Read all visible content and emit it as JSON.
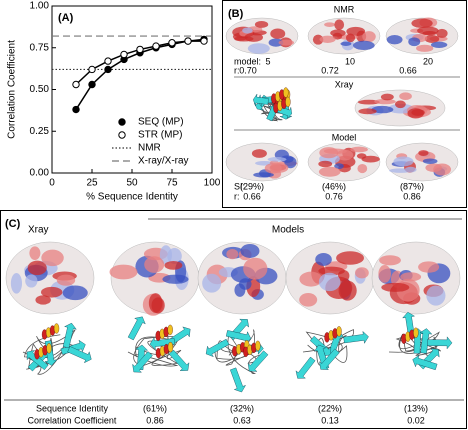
{
  "chart_data": {
    "type": "line",
    "panel_label": "(A)",
    "xlabel": "% Sequence Identity",
    "ylabel": "Correlation Coefficient",
    "x": [
      15,
      25,
      35,
      45,
      55,
      65,
      75,
      85,
      95
    ],
    "series": [
      {
        "name": "SEQ (MP)",
        "color": "#000000",
        "marker": "filled",
        "values": [
          0.38,
          0.53,
          0.62,
          0.68,
          0.72,
          0.75,
          0.77,
          0.79,
          0.8
        ]
      },
      {
        "name": "STR (MP)",
        "color": "#000000",
        "marker": "open",
        "values": [
          0.53,
          0.62,
          0.67,
          0.71,
          0.74,
          0.76,
          0.78,
          0.79,
          0.79
        ]
      }
    ],
    "reference_lines": [
      {
        "name": "NMR",
        "value": 0.62,
        "style": "dotted",
        "color": "#333333"
      },
      {
        "name": "X-ray/X-ray",
        "value": 0.82,
        "style": "dashed",
        "color": "#777777"
      }
    ],
    "xlim": [
      0,
      100
    ],
    "xticks": [
      0,
      25,
      50,
      75,
      100
    ],
    "ylim": [
      0,
      1
    ],
    "yticks": [
      {
        "value": 0,
        "label": "0.00"
      },
      {
        "value": 0.25,
        "label": "0.25"
      },
      {
        "value": 0.5,
        "label": "0.50"
      },
      {
        "value": 0.75,
        "label": "0.75"
      },
      {
        "value": 1,
        "label": "1.00"
      }
    ],
    "legend": "lower right"
  },
  "panel_b": {
    "label": "(B)",
    "nmr": {
      "title": "NMR",
      "model_label": "model:",
      "r_label": "r:",
      "models": [
        "5",
        "10",
        "20"
      ],
      "r": [
        "0.70",
        "0.72",
        "0.66"
      ]
    },
    "xray": {
      "title": "Xray"
    },
    "model": {
      "title": "Model",
      "si_label": "SI:",
      "r_label": "r:",
      "si": [
        "(29%)",
        "(46%)",
        "(87%)"
      ],
      "r": [
        "0.66",
        "0.76",
        "0.86"
      ]
    }
  },
  "panel_c": {
    "label": "(C)",
    "xray_title": "Xray",
    "models_title": "Models",
    "row1_label": "Sequence Identity",
    "row2_label": "Correlation Coefficient",
    "si": [
      "(61%)",
      "(32%)",
      "(22%)",
      "(13%)"
    ],
    "cc": [
      "0.86",
      "0.63",
      "0.13",
      "0.02"
    ]
  }
}
